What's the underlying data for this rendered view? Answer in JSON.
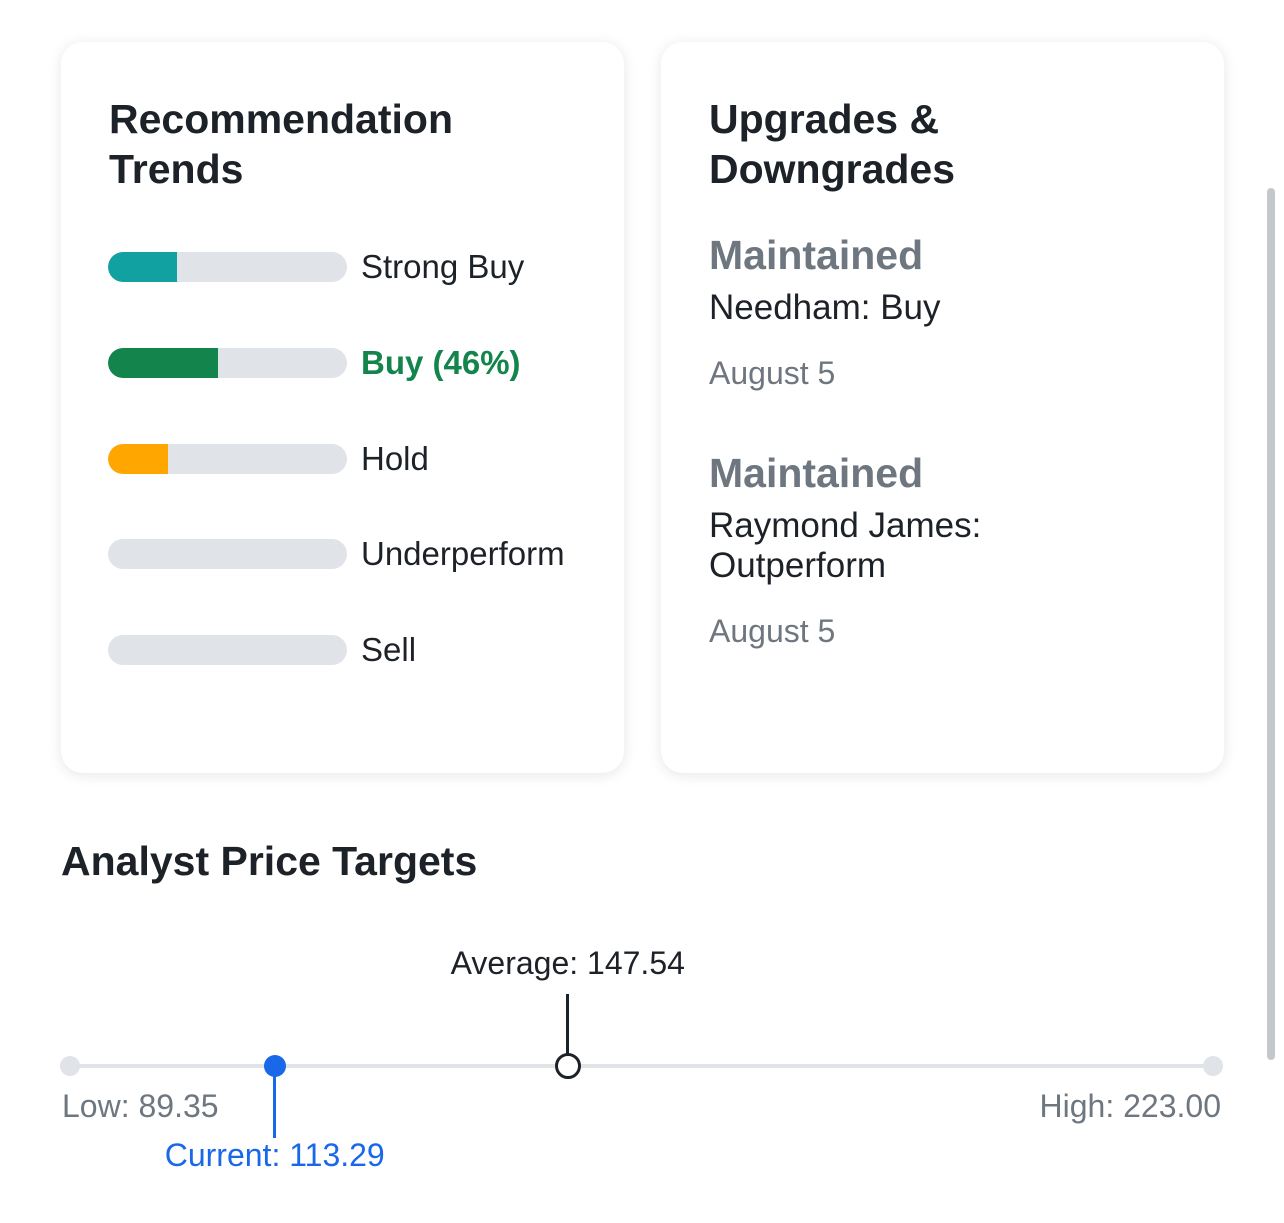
{
  "recommendation_trends": {
    "title": "Recommendation Trends",
    "items": [
      {
        "label": "Strong Buy",
        "fill_fraction": 0.29,
        "color": "#10a1a0",
        "active": false
      },
      {
        "label": "Buy (46%)",
        "fill_fraction": 0.46,
        "color": "#13844b",
        "active": true
      },
      {
        "label": "Hold",
        "fill_fraction": 0.25,
        "color": "#ffa700",
        "active": false
      },
      {
        "label": "Underperform",
        "fill_fraction": 0,
        "color": "#e0e3e8",
        "active": false
      },
      {
        "label": "Sell",
        "fill_fraction": 0,
        "color": "#e0e3e8",
        "active": false
      }
    ]
  },
  "upgrades_downgrades": {
    "title": "Upgrades & Downgrades",
    "items": [
      {
        "action": "Maintained",
        "firm_rating": "Needham: Buy",
        "date": "August 5"
      },
      {
        "action": "Maintained",
        "firm_rating": "Raymond James: Outperform",
        "date": "August 5"
      }
    ]
  },
  "analyst_price_targets": {
    "title": "Analyst Price Targets",
    "low_label": "Low: 89.35",
    "high_label": "High: 223.00",
    "current_label": "Current: 113.29",
    "average_label": "Average: 147.54",
    "low": 89.35,
    "high": 223.0,
    "current": 113.29,
    "average": 147.54
  },
  "colors": {
    "strong_buy": "#10a1a0",
    "buy": "#13844b",
    "hold": "#ffa700",
    "current_marker": "#1a68ea",
    "track": "#e0e3e8"
  }
}
